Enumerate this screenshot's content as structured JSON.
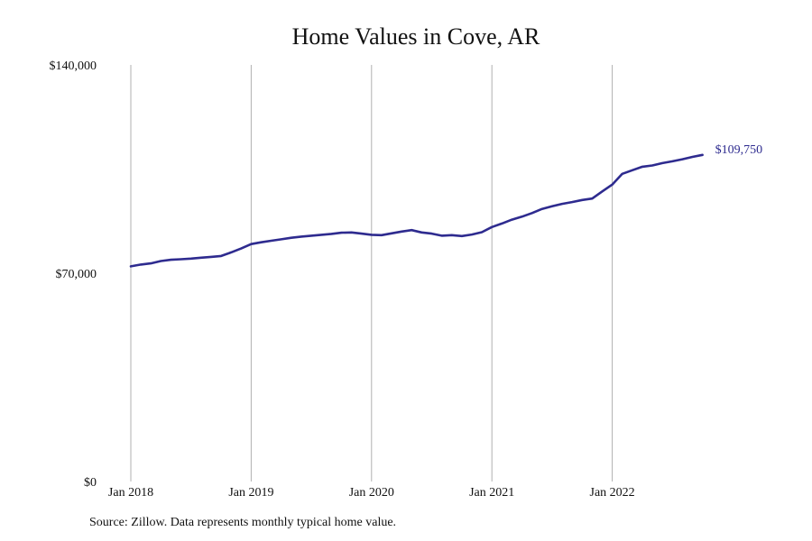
{
  "chart_data": {
    "type": "line",
    "title": "Home Values in Cove, AR",
    "source": "Source: Zillow. Data represents monthly typical home value.",
    "ylim": [
      0,
      140000
    ],
    "y_ticks": [
      {
        "value": 0,
        "label": "$0"
      },
      {
        "value": 70000,
        "label": "$70,000"
      },
      {
        "value": 140000,
        "label": "$140,000"
      }
    ],
    "x_ticks": [
      {
        "value": 0,
        "label": "Jan 2018"
      },
      {
        "value": 12,
        "label": "Jan 2019"
      },
      {
        "value": 24,
        "label": "Jan 2020"
      },
      {
        "value": 36,
        "label": "Jan 2021"
      },
      {
        "value": 48,
        "label": "Jan 2022"
      }
    ],
    "vertical_gridlines": true,
    "line_color": "#2e2b8f",
    "grid_color": "#b0b0b0",
    "series": [
      {
        "start": "Jan 2018",
        "frequency": "monthly",
        "end_label": "$109,750",
        "values": [
          72300,
          72900,
          73300,
          74100,
          74500,
          74700,
          74900,
          75200,
          75500,
          75800,
          77000,
          78300,
          79800,
          80400,
          80900,
          81400,
          81900,
          82300,
          82600,
          82900,
          83200,
          83600,
          83700,
          83300,
          82900,
          82800,
          83400,
          84000,
          84500,
          83700,
          83300,
          82600,
          82800,
          82500,
          83000,
          83800,
          85500,
          86700,
          88000,
          89000,
          90200,
          91600,
          92500,
          93300,
          93900,
          94600,
          95100,
          97500,
          99800,
          103400,
          104600,
          105800,
          106200,
          107000,
          107600,
          108300,
          109100,
          109750
        ]
      }
    ]
  }
}
